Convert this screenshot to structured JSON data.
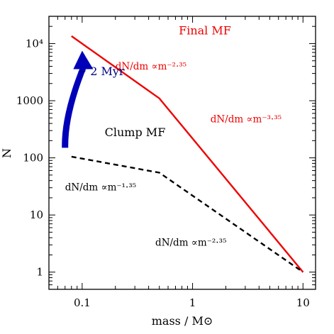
{
  "chart_data": {
    "type": "line",
    "xscale": "log",
    "yscale": "log",
    "xlim": [
      0.05,
      13
    ],
    "ylim": [
      0.5,
      30000
    ],
    "xlabel": "mass / M⊙",
    "ylabel": "N",
    "x_ticks": [
      {
        "value": 0.1,
        "label": "0.1"
      },
      {
        "value": 1,
        "label": "1"
      },
      {
        "value": 10,
        "label": "10"
      }
    ],
    "y_ticks": [
      {
        "value": 1,
        "label": "1"
      },
      {
        "value": 10,
        "label": "10"
      },
      {
        "value": 100,
        "label": "100"
      },
      {
        "value": 1000,
        "label": "1000"
      },
      {
        "value": 10000,
        "label": "10⁴"
      }
    ],
    "series": [
      {
        "style": "solid",
        "color": "#ee0000",
        "points": [
          [
            0.08,
            13500
          ],
          [
            0.5,
            1100
          ],
          [
            10,
            1
          ]
        ]
      },
      {
        "style": "dashed",
        "color": "#000000",
        "points": [
          [
            0.08,
            105
          ],
          [
            0.5,
            55
          ],
          [
            10,
            1
          ]
        ]
      }
    ],
    "annotations": [
      {
        "id": "final-mf",
        "text": "Final MF",
        "color": "#ee0000",
        "x": 0.75,
        "y": 14500,
        "size": 16
      },
      {
        "id": "final-slope-1",
        "text": "dN/dm ∝m⁻²·³⁵",
        "color": "#ee0000",
        "x": 0.2,
        "y": 3500,
        "size": 13.5
      },
      {
        "id": "final-slope-2",
        "text": "dN/dm ∝m⁻³·³⁵",
        "color": "#ee0000",
        "x": 1.45,
        "y": 420,
        "size": 13.5
      },
      {
        "id": "clump-mf",
        "text": "Clump MF",
        "color": "#000000",
        "x": 0.16,
        "y": 240,
        "size": 16
      },
      {
        "id": "clump-slope-1",
        "text": "dN/dm ∝m⁻¹·³⁵",
        "color": "#000000",
        "x": 0.07,
        "y": 27,
        "size": 13.5
      },
      {
        "id": "clump-slope-2",
        "text": "dN/dm ∝m⁻²·³⁵",
        "color": "#000000",
        "x": 0.46,
        "y": 2.9,
        "size": 13.5
      },
      {
        "id": "time-label",
        "text": "~ 2 Myr",
        "color": "#000080",
        "x": 0.09,
        "y": 2800,
        "size": 16
      }
    ],
    "arrow": {
      "color": "#0000b8",
      "from": [
        0.07,
        150
      ],
      "to": [
        0.1,
        7500
      ]
    }
  }
}
